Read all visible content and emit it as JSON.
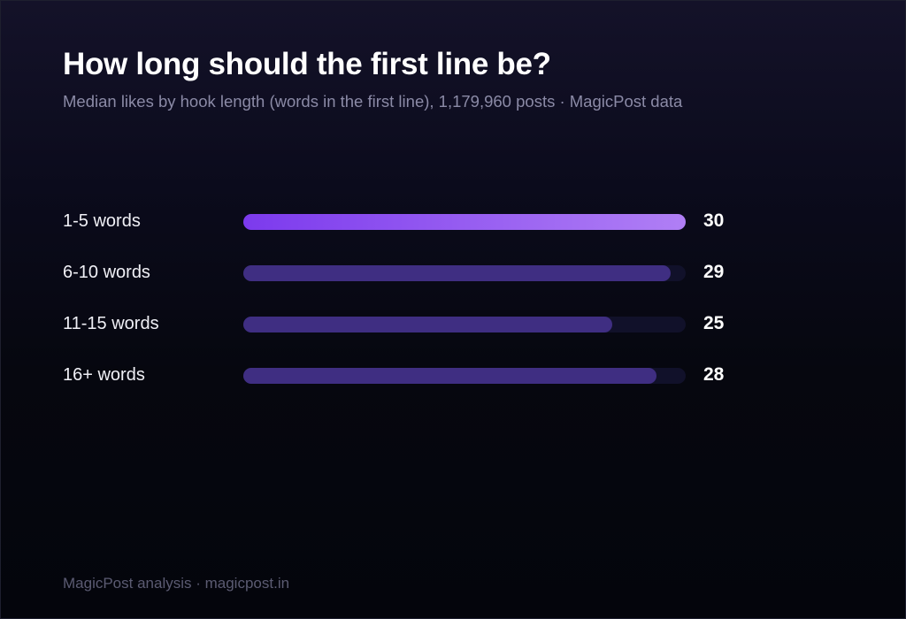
{
  "title": "How long should the first line be?",
  "subtitle": "Median likes by hook length (words in the first line), 1,179,960 posts · MagicPost data",
  "footer": "MagicPost analysis · magicpost.in",
  "colors": {
    "highlight_start": "#7c3aed",
    "highlight_end": "#b07ff5",
    "bar": "#3f2e82",
    "track": "#11112a"
  },
  "chart_data": {
    "type": "bar",
    "orientation": "horizontal",
    "categories": [
      "1-5 words",
      "6-10 words",
      "11-15 words",
      "16+ words"
    ],
    "values": [
      30,
      29,
      25,
      28
    ],
    "highlight_index": 0,
    "xlim": [
      0,
      30
    ],
    "grid": false
  }
}
